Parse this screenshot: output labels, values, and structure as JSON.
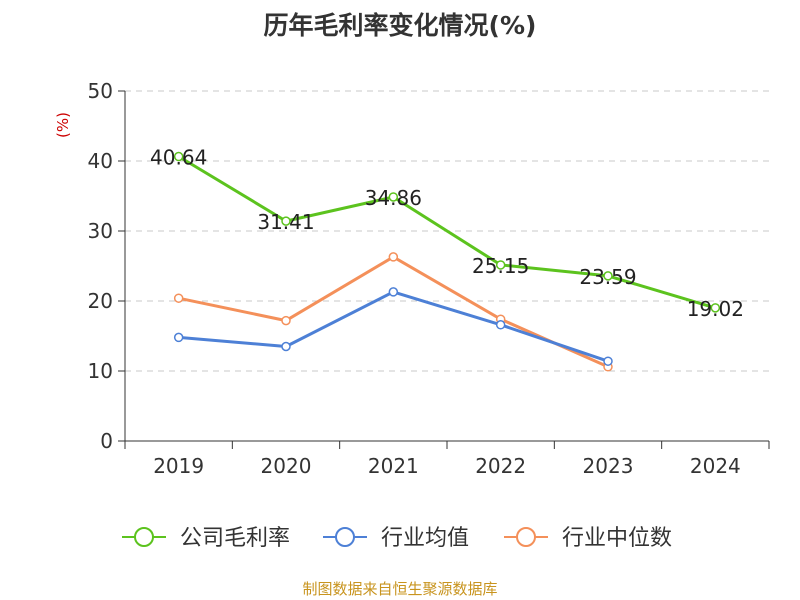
{
  "title": "历年毛利率变化情况(%)",
  "source": "制图数据来自恒生聚源数据库",
  "chart_data": {
    "type": "line",
    "title": "历年毛利率变化情况(%)",
    "ylabel": "(%)",
    "xlabel": "",
    "categories": [
      "2019",
      "2020",
      "2021",
      "2022",
      "2023",
      "2024"
    ],
    "ylim": [
      0,
      50
    ],
    "yticks": [
      0,
      10,
      20,
      30,
      40,
      50
    ],
    "grid": true,
    "legend": "bottom",
    "series": [
      {
        "name": "公司毛利率",
        "color": "#5cc31e",
        "values": [
          40.64,
          31.41,
          34.86,
          25.15,
          23.59,
          19.02
        ],
        "labels": [
          "40.64",
          "31.41",
          "34.86",
          "25.15",
          "23.59",
          "19.02"
        ]
      },
      {
        "name": "行业均值",
        "color": "#4d80d6",
        "values": [
          14.8,
          13.5,
          21.3,
          16.6,
          11.4,
          null
        ]
      },
      {
        "name": "行业中位数",
        "color": "#f4905a",
        "values": [
          20.4,
          17.2,
          26.3,
          17.4,
          10.6,
          null
        ]
      }
    ]
  }
}
